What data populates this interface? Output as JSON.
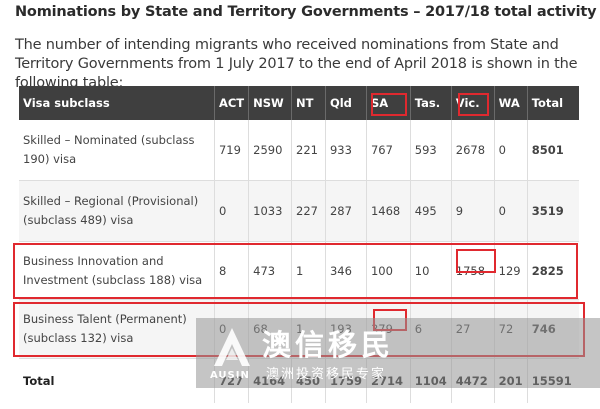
{
  "heading": "Nominations by State and Territory Governments – 2017/18 total activity",
  "intro": "The number of intending migrants who received nominations from State and Territory Governments from 1 July 2017 to the end of April 2018 is shown in the following table:",
  "table": {
    "columns": [
      "Visa subclass",
      "ACT",
      "NSW",
      "NT",
      "Qld",
      "SA",
      "Tas.",
      "Vic.",
      "WA",
      "Total"
    ],
    "rows": [
      {
        "subclass": "Skilled – Nominated (subclass 190) visa",
        "ACT": "719",
        "NSW": "2590",
        "NT": "221",
        "Qld": "933",
        "SA": "767",
        "Tas": "593",
        "Vic": "2678",
        "WA": "0",
        "Total": "8501"
      },
      {
        "subclass": "Skilled – Regional (Provisional) (subclass 489) visa",
        "ACT": "0",
        "NSW": "1033",
        "NT": "227",
        "Qld": "287",
        "SA": "1468",
        "Tas": "495",
        "Vic": "9",
        "WA": "0",
        "Total": "3519"
      },
      {
        "subclass": "Business Innovation and Investment (subclass 188) visa",
        "ACT": "8",
        "NSW": "473",
        "NT": "1",
        "Qld": "346",
        "SA": "100",
        "Tas": "10",
        "Vic": "1758",
        "WA": "129",
        "Total": "2825"
      },
      {
        "subclass": "Business Talent (Permanent) (subclass 132) visa",
        "ACT": "0",
        "NSW": "68",
        "NT": "1",
        "Qld": "193",
        "SA": "379",
        "Tas": "6",
        "Vic": "27",
        "WA": "72",
        "Total": "746"
      },
      {
        "subclass": "Total",
        "ACT": "727",
        "NSW": "4164",
        "NT": "450",
        "Qld": "1759",
        "SA": "2714",
        "Tas": "1104",
        "Vic": "4472",
        "WA": "201",
        "Total": "15591"
      }
    ]
  },
  "watermark": {
    "brand": "澳信移民",
    "brand_en": "AUSIN",
    "tagline": "澳洲投资移民专家"
  },
  "colors": {
    "header_bg": "#3f3f3f",
    "highlight": "#e0292f",
    "alt_row": "#f5f5f5"
  }
}
